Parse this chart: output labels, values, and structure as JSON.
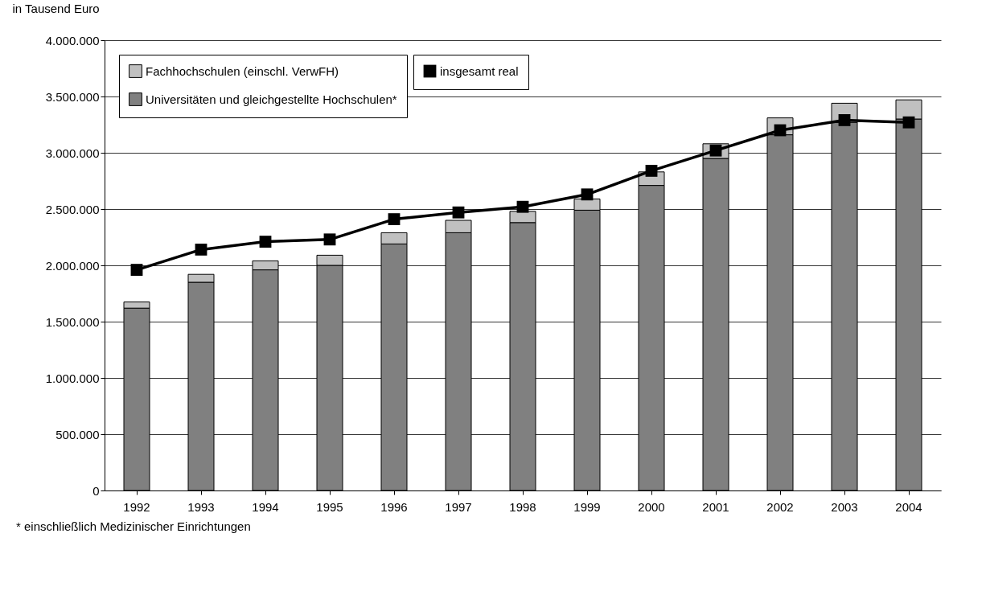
{
  "chart_data": {
    "type": "bar",
    "stacked": true,
    "ylabel": "in Tausend Euro",
    "categories": [
      "1992",
      "1993",
      "1994",
      "1995",
      "1996",
      "1997",
      "1998",
      "1999",
      "2000",
      "2001",
      "2002",
      "2003",
      "2004"
    ],
    "series": [
      {
        "name": "Universitäten und gleichgestellte Hochschulen*",
        "color": "#808080",
        "values": [
          1620000,
          1850000,
          1960000,
          2000000,
          2190000,
          2290000,
          2380000,
          2490000,
          2710000,
          2950000,
          3160000,
          3270000,
          3300000
        ]
      },
      {
        "name": "Fachhochschulen (einschl. VerwFH)",
        "color": "#c0c0c0",
        "values": [
          55000,
          70000,
          80000,
          90000,
          100000,
          110000,
          100000,
          100000,
          120000,
          130000,
          150000,
          170000,
          170000
        ]
      },
      {
        "name": "insgesamt real",
        "type": "line",
        "line_style": "solid",
        "color": "#000000",
        "marker": "square",
        "values": [
          1960000,
          2140000,
          2210000,
          2230000,
          2410000,
          2470000,
          2520000,
          2630000,
          2840000,
          3020000,
          3200000,
          3290000,
          3270000
        ]
      }
    ],
    "ylim": [
      0,
      4000000
    ],
    "yticks": [
      {
        "value": 0,
        "label": "0"
      },
      {
        "value": 500000,
        "label": "500.000"
      },
      {
        "value": 1000000,
        "label": "1.000.000"
      },
      {
        "value": 1500000,
        "label": "1.500.000"
      },
      {
        "value": 2000000,
        "label": "2.000.000"
      },
      {
        "value": 2500000,
        "label": "2.500.000"
      },
      {
        "value": 3000000,
        "label": "3.000.000"
      },
      {
        "value": 3500000,
        "label": "3.500.000"
      },
      {
        "value": 4000000,
        "label": "4.000.000"
      }
    ],
    "grid": "y",
    "legend": "top left",
    "annotations": [
      "* einschließlich Medizinischer Einrichtungen"
    ]
  }
}
